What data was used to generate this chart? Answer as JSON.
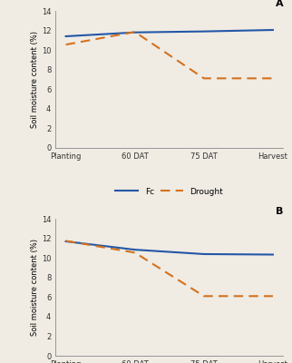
{
  "x_labels": [
    "Planting",
    "60 DAT",
    "75 DAT",
    "Harvest"
  ],
  "panel_A": {
    "Fc": [
      11.4,
      11.8,
      11.9,
      12.05
    ],
    "Drought": [
      10.55,
      11.85,
      7.1,
      7.1
    ],
    "label": "A"
  },
  "panel_B": {
    "Fc": [
      11.7,
      10.85,
      10.4,
      10.35
    ],
    "Drought": [
      11.75,
      10.55,
      6.1,
      6.1
    ],
    "label": "B"
  },
  "fc_color": "#2457a7",
  "drought_color": "#d4721e",
  "ylabel": "Soil moisture content (%)",
  "ylim": [
    0,
    14
  ],
  "yticks": [
    0,
    2,
    4,
    6,
    8,
    10,
    12,
    14
  ],
  "legend_fc": "Fc",
  "legend_drought": "Drought",
  "bg_color": "#f0ece4",
  "linewidth": 1.5
}
